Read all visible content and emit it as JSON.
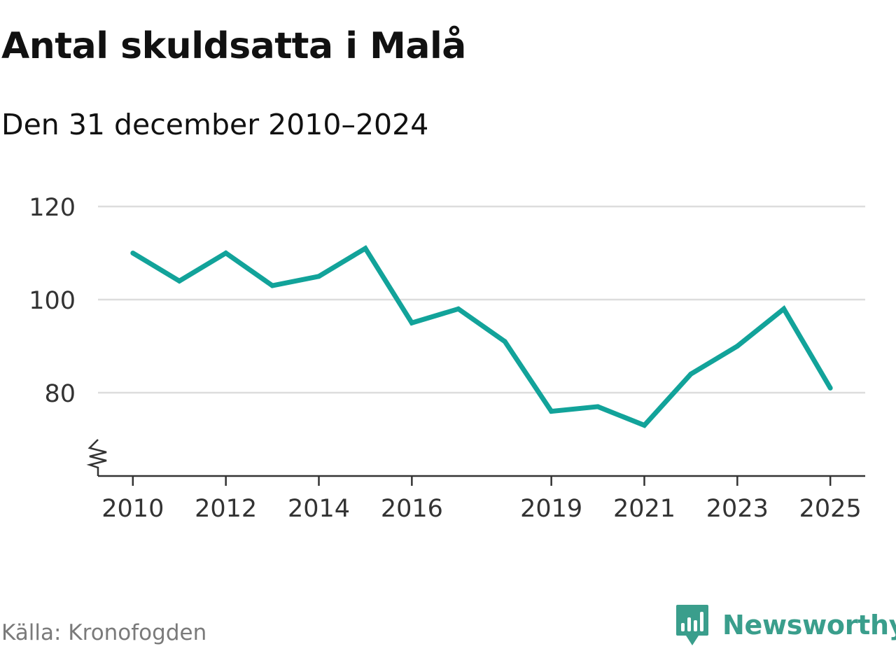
{
  "header": {
    "title": "Antal skuldsatta i Malå",
    "subtitle": "Den 31 december 2010–2024"
  },
  "footer": {
    "source": "Källa: Kronofogden",
    "brand": "Newsworthy"
  },
  "colors": {
    "line": "#12a39a",
    "brand": "#3a9e8c",
    "grid": "#dddddd",
    "axis": "#333333",
    "tick_text": "#333333"
  },
  "chart_data": {
    "type": "line",
    "title": "Antal skuldsatta i Malå",
    "subtitle": "Den 31 december 2010–2024",
    "xlabel": "",
    "ylabel": "",
    "x": [
      2010,
      2011,
      2012,
      2013,
      2014,
      2015,
      2016,
      2017,
      2018,
      2019,
      2020,
      2021,
      2022,
      2023,
      2024,
      2025
    ],
    "series": [
      {
        "name": "Antal skuldsatta",
        "values": [
          110,
          104,
          110,
          103,
          105,
          111,
          95,
          98,
          91,
          76,
          77,
          73,
          84,
          90,
          98,
          81
        ]
      }
    ],
    "xlim": [
      2009.25,
      2025.75
    ],
    "ylim": [
      68,
      120
    ],
    "x_ticks": [
      2010,
      2012,
      2014,
      2016,
      2019,
      2021,
      2023,
      2025
    ],
    "y_ticks": [
      80,
      100,
      120
    ],
    "axis_break": true,
    "grid": true
  }
}
